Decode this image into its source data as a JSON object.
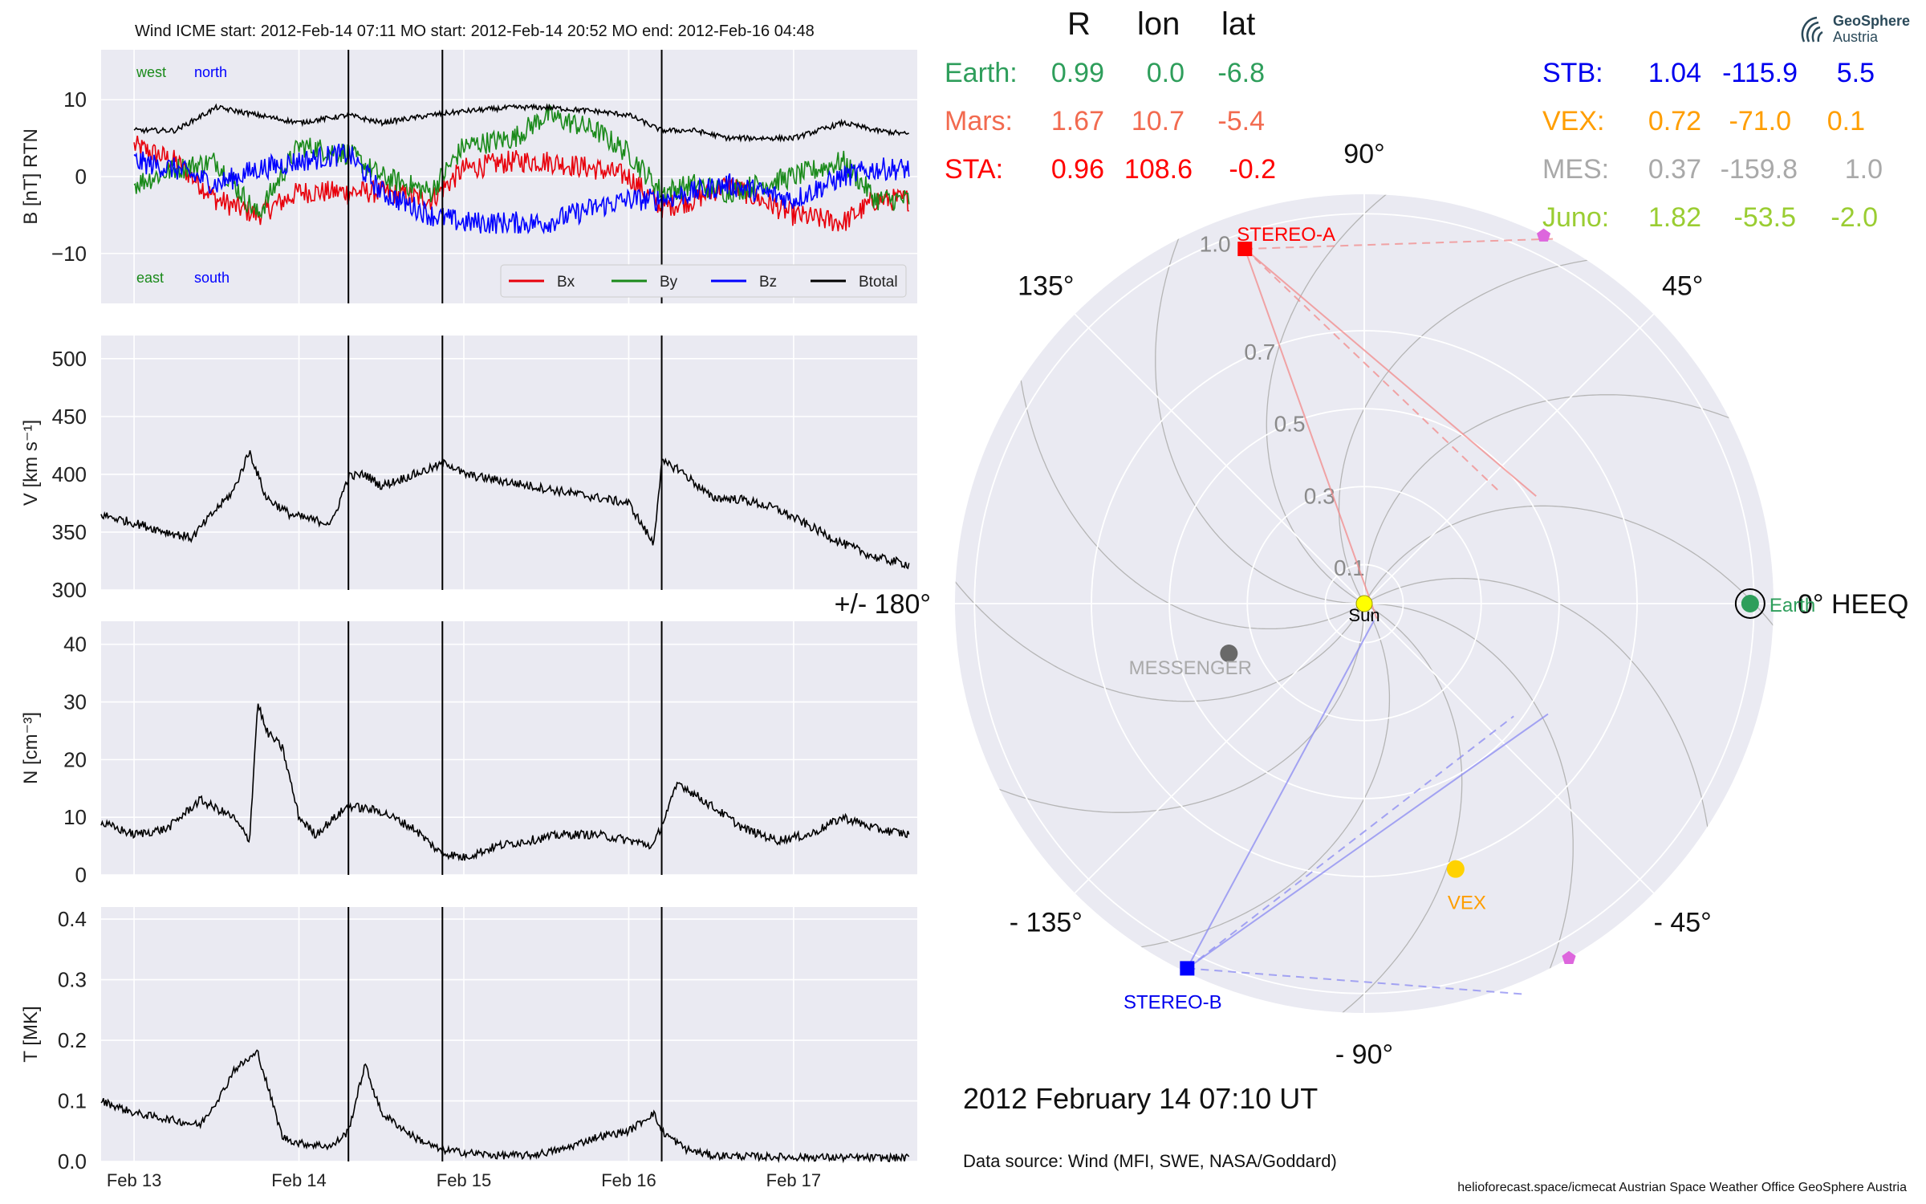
{
  "header": {
    "event_line": "Wind    ICME start: 2012-Feb-14 07:11   MO start: 2012-Feb-14 20:52   MO end: 2012-Feb-16 04:48",
    "logo_line1": "GeoSphere",
    "logo_line2": "Austria"
  },
  "table": {
    "col_r": "R",
    "col_lon": "lon",
    "col_lat": "lat",
    "rows": [
      {
        "name": "Earth:",
        "r": "0.99",
        "lon": "0.0",
        "lat": "-6.8",
        "color": "#2e9e5b"
      },
      {
        "name": "Mars:",
        "r": "1.67",
        "lon": "10.7",
        "lat": "-5.4",
        "color": "#f26a4f"
      },
      {
        "name": "STA:",
        "r": "0.96",
        "lon": "108.6",
        "lat": "-0.2",
        "color": "#ff0000"
      },
      {
        "name": "STB:",
        "r": "1.04",
        "lon": "-115.9",
        "lat": "5.5",
        "color": "#0000ee"
      },
      {
        "name": "VEX:",
        "r": "0.72",
        "lon": "-71.0",
        "lat": "0.1",
        "color": "#ff9e00"
      },
      {
        "name": "MES:",
        "r": "0.37",
        "lon": "-159.8",
        "lat": "1.0",
        "color": "#a9a9a9"
      },
      {
        "name": "Juno:",
        "r": "1.82",
        "lon": "-53.5",
        "lat": "-2.0",
        "color": "#9acd32"
      }
    ]
  },
  "footer": {
    "date": "2012 February 14  07:10 UT",
    "source": "Data source: Wind (MFI, SWE, NASA/Goddard)",
    "credits": "helioforecast.space/icmecat   Austrian Space Weather Office   GeoSphere Austria"
  },
  "chart_data": [
    {
      "type": "line",
      "ylabel": "B [nT] RTN",
      "ylim": [
        -16.5,
        16.5
      ],
      "yticks": [
        -10,
        0,
        10
      ],
      "ytick_labels": [
        "−10",
        "0",
        "10"
      ],
      "annotations": [
        "west",
        "north",
        "east",
        "south"
      ],
      "legend": {
        "placement": "lower-right",
        "entries": [
          "Bx",
          "By",
          "Bz",
          "Btotal"
        ]
      },
      "series": [
        {
          "name": "Bx",
          "color": "#e8000b",
          "x": [
            13.0,
            13.25,
            13.5,
            13.75,
            14.0,
            14.3,
            14.5,
            14.8,
            15.0,
            15.3,
            15.5,
            15.8,
            16.0,
            16.2,
            16.4,
            16.6,
            16.8,
            17.0,
            17.3,
            17.5,
            17.7
          ],
          "y": [
            4,
            2,
            -3,
            -5,
            -2,
            -2,
            -2,
            -3,
            1,
            2,
            2,
            1,
            0,
            -4,
            -3,
            -1,
            -3,
            -5,
            -6,
            -3,
            -3
          ]
        },
        {
          "name": "By",
          "color": "#1a8a1a",
          "x": [
            13.0,
            13.25,
            13.5,
            13.75,
            14.0,
            14.3,
            14.5,
            14.8,
            15.0,
            15.3,
            15.5,
            15.8,
            16.0,
            16.2,
            16.4,
            16.6,
            16.8,
            17.0,
            17.3,
            17.5,
            17.7
          ],
          "y": [
            -1,
            1,
            2,
            -5,
            4,
            3,
            0,
            -2,
            4,
            5,
            8,
            6,
            3,
            -2,
            -1,
            -2,
            -1,
            0,
            2,
            -3,
            -3
          ]
        },
        {
          "name": "Bz",
          "color": "#0000ff",
          "x": [
            13.0,
            13.25,
            13.5,
            13.75,
            14.0,
            14.3,
            14.5,
            14.8,
            15.0,
            15.3,
            15.5,
            15.8,
            16.0,
            16.2,
            16.4,
            16.6,
            16.8,
            17.0,
            17.3,
            17.5,
            17.7
          ],
          "y": [
            2,
            1,
            -1,
            1,
            2,
            3,
            -2,
            -5,
            -6,
            -6,
            -6,
            -4,
            -3,
            -3,
            -2,
            -1,
            -2,
            -3,
            0,
            1,
            1
          ]
        },
        {
          "name": "Btotal",
          "color": "#000000",
          "x": [
            13.0,
            13.25,
            13.5,
            13.75,
            14.0,
            14.3,
            14.5,
            14.8,
            15.0,
            15.3,
            15.5,
            15.8,
            16.0,
            16.2,
            16.4,
            16.6,
            16.8,
            17.0,
            17.3,
            17.5,
            17.7
          ],
          "y": [
            6,
            6,
            9,
            8,
            7,
            8,
            7,
            8,
            8.5,
            9,
            9,
            8.5,
            8,
            6,
            6,
            5,
            5,
            5,
            7,
            6,
            5.5
          ]
        }
      ]
    },
    {
      "type": "line",
      "ylabel": "V [km s⁻¹]",
      "ylim": [
        300,
        520
      ],
      "yticks": [
        300,
        350,
        400,
        450,
        500
      ],
      "ytick_labels": [
        "300",
        "350",
        "400",
        "450",
        "500"
      ],
      "series": [
        {
          "name": "V",
          "color": "#000000",
          "x": [
            12.8,
            13.0,
            13.2,
            13.35,
            13.5,
            13.6,
            13.7,
            13.8,
            13.95,
            14.1,
            14.2,
            14.3,
            14.4,
            14.5,
            14.7,
            14.9,
            15.0,
            15.2,
            15.4,
            15.6,
            15.8,
            16.0,
            16.15,
            16.2,
            16.3,
            16.5,
            16.7,
            16.9,
            17.1,
            17.3,
            17.5,
            17.7
          ],
          "y": [
            365,
            358,
            350,
            345,
            370,
            385,
            420,
            380,
            365,
            360,
            358,
            398,
            400,
            390,
            400,
            410,
            400,
            395,
            390,
            385,
            380,
            375,
            340,
            410,
            405,
            380,
            378,
            370,
            355,
            340,
            328,
            322
          ]
        }
      ]
    },
    {
      "type": "line",
      "ylabel": "N [cm⁻³]",
      "ylim": [
        0,
        44
      ],
      "yticks": [
        0,
        10,
        20,
        30,
        40
      ],
      "ytick_labels": [
        "0",
        "10",
        "20",
        "30",
        "40"
      ],
      "series": [
        {
          "name": "N",
          "color": "#000000",
          "x": [
            12.8,
            13.0,
            13.2,
            13.4,
            13.6,
            13.7,
            13.75,
            13.8,
            13.9,
            14.0,
            14.1,
            14.3,
            14.5,
            14.7,
            14.85,
            15.0,
            15.2,
            15.4,
            15.6,
            15.8,
            16.0,
            16.15,
            16.3,
            16.5,
            16.7,
            16.9,
            17.1,
            17.3,
            17.5,
            17.7
          ],
          "y": [
            9,
            7,
            8,
            13,
            10,
            6,
            30,
            25,
            22,
            10,
            7,
            12,
            11,
            8,
            4,
            3,
            5,
            6,
            7,
            7,
            6,
            5,
            16,
            12,
            8,
            6,
            7,
            10,
            8,
            7
          ]
        }
      ]
    },
    {
      "type": "line",
      "ylabel": "T [MK]",
      "ylim": [
        0,
        0.42
      ],
      "yticks": [
        0.0,
        0.1,
        0.2,
        0.3,
        0.4
      ],
      "ytick_labels": [
        "0.0",
        "0.1",
        "0.2",
        "0.3",
        "0.4"
      ],
      "x_tick_labels": [
        "Feb 13",
        "Feb 14",
        "Feb 15",
        "Feb 16",
        "Feb 17"
      ],
      "x_tick_values": [
        13,
        14,
        15,
        16,
        17
      ],
      "xlim": [
        12.8,
        17.75
      ],
      "series": [
        {
          "name": "T",
          "color": "#000000",
          "x": [
            12.8,
            13.0,
            13.2,
            13.4,
            13.55,
            13.6,
            13.75,
            13.9,
            14.0,
            14.2,
            14.3,
            14.4,
            14.5,
            14.7,
            14.85,
            15.0,
            15.2,
            15.4,
            15.6,
            15.8,
            16.0,
            16.15,
            16.2,
            16.35,
            16.5,
            16.8,
            17.1,
            17.4,
            17.7
          ],
          "y": [
            0.1,
            0.08,
            0.07,
            0.06,
            0.12,
            0.15,
            0.18,
            0.04,
            0.03,
            0.025,
            0.05,
            0.16,
            0.08,
            0.04,
            0.02,
            0.015,
            0.01,
            0.01,
            0.02,
            0.04,
            0.05,
            0.08,
            0.05,
            0.02,
            0.01,
            0.008,
            0.007,
            0.006,
            0.006
          ]
        }
      ]
    },
    {
      "type": "scatter",
      "projection": "polar",
      "rlim": [
        0,
        1.05
      ],
      "r_tick_labels": [
        "0.1",
        "0.3",
        "0.5",
        "0.7",
        "1.0"
      ],
      "r_tick_values": [
        0.1,
        0.3,
        0.5,
        0.7,
        1.0
      ],
      "angle_labels": [
        "0° HEEQ",
        "45°",
        "90°",
        "135°",
        "+/- 180°",
        "- 135°",
        "- 90°",
        "- 45°"
      ],
      "angle_values": [
        0,
        45,
        90,
        135,
        180,
        -135,
        -90,
        -45
      ],
      "points": [
        {
          "label": "Sun",
          "r": 0.0,
          "lon": 0.0,
          "color": "#ffff00",
          "label_color": "#000000"
        },
        {
          "label": "Earth",
          "r": 0.99,
          "lon": 0.0,
          "color": "#2e9e5b",
          "label_color": "#2e9e5b"
        },
        {
          "label": "STEREO-A",
          "r": 0.96,
          "lon": 108.6,
          "color": "#ff0000",
          "label_color": "#ff0000"
        },
        {
          "label": "STEREO-B",
          "r": 1.04,
          "lon": -115.9,
          "color": "#0000ff",
          "label_color": "#0000ee"
        },
        {
          "label": "VEX",
          "r": 0.72,
          "lon": -71.0,
          "color": "#ffd200",
          "label_color": "#ff9e00"
        },
        {
          "label": "MESSENGER",
          "r": 0.37,
          "lon": -159.8,
          "color": "#696969",
          "label_color": "#a9a9a9"
        },
        {
          "label": "",
          "r": 1.05,
          "lon": 64.0,
          "color": "#dd66dd",
          "label_color": "#dd66dd"
        },
        {
          "label": "",
          "r": 1.05,
          "lon": -60.0,
          "color": "#dd66dd",
          "label_color": "#dd66dd"
        }
      ]
    }
  ]
}
